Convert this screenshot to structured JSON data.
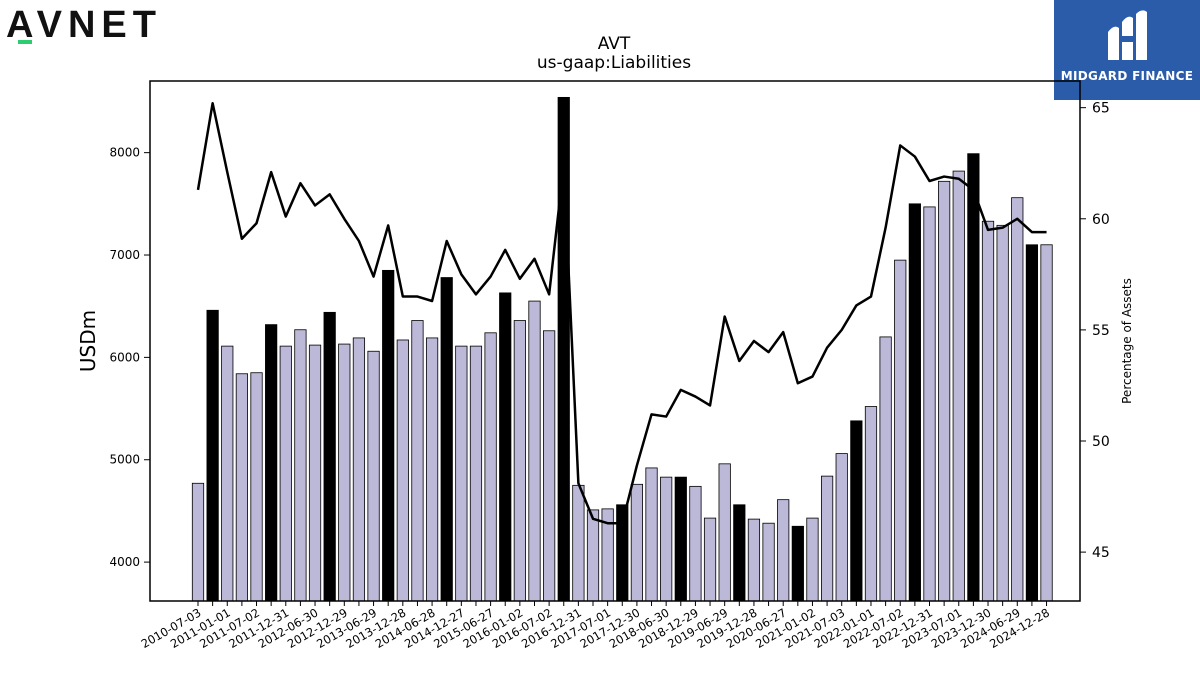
{
  "logos": {
    "left": "AVNET",
    "right": "MIDGARD FINANCE"
  },
  "chart_data": {
    "type": "bar",
    "title": "AVT",
    "subtitle": "us-gaap:Liabilities",
    "ylabel": "USDm",
    "y2label": "Percentage of Assets",
    "ylim": [
      3620,
      8700
    ],
    "y2lim": [
      42.8,
      66.2
    ],
    "yticks": [
      4000,
      5000,
      6000,
      7000,
      8000
    ],
    "y2ticks": [
      45,
      50,
      55,
      60,
      65
    ],
    "colors": {
      "bar": "#bcb8d8",
      "bar_highlight": "#000000",
      "line": "#000000"
    },
    "categories": [
      "2010-07-03",
      "2010-10-02",
      "2011-01-01",
      "2011-04-02",
      "2011-07-02",
      "2011-10-01",
      "2011-12-31",
      "2012-03-31",
      "2012-06-30",
      "2012-09-29",
      "2012-12-29",
      "2013-03-30",
      "2013-06-29",
      "2013-09-28",
      "2013-12-28",
      "2014-03-29",
      "2014-06-28",
      "2014-09-27",
      "2014-12-27",
      "2015-03-28",
      "2015-06-27",
      "2015-10-03",
      "2016-01-02",
      "2016-04-02",
      "2016-07-02",
      "2016-10-01",
      "2016-12-31",
      "2017-04-01",
      "2017-07-01",
      "2017-09-30",
      "2017-12-30",
      "2018-03-31",
      "2018-06-30",
      "2018-09-29",
      "2018-12-29",
      "2019-03-30",
      "2019-06-29",
      "2019-09-28",
      "2019-12-28",
      "2020-03-28",
      "2020-06-27",
      "2020-10-03",
      "2021-01-02",
      "2021-04-03",
      "2021-07-03",
      "2021-10-02",
      "2022-01-01",
      "2022-04-02",
      "2022-07-02",
      "2022-10-01",
      "2022-12-31",
      "2023-04-01",
      "2023-07-01",
      "2023-09-30",
      "2023-12-30",
      "2024-03-30",
      "2024-06-29",
      "2024-09-28",
      "2024-12-28"
    ],
    "tick_labels": [
      "2010-07-03",
      "2011-01-01",
      "2011-07-02",
      "2011-12-31",
      "2012-06-30",
      "2012-12-29",
      "2013-06-29",
      "2013-12-28",
      "2014-06-28",
      "2014-12-27",
      "2015-06-27",
      "2016-01-02",
      "2016-07-02",
      "2016-12-31",
      "2017-07-01",
      "2017-12-30",
      "2018-06-30",
      "2018-12-29",
      "2019-06-29",
      "2019-12-28",
      "2020-06-27",
      "2021-01-02",
      "2021-07-03",
      "2022-01-01",
      "2022-07-02",
      "2022-12-31",
      "2023-07-01",
      "2023-12-30",
      "2024-06-29",
      "2024-12-28"
    ],
    "series": [
      {
        "name": "USDm",
        "values": [
          4770,
          6460,
          6110,
          5840,
          5850,
          6320,
          6110,
          6270,
          6120,
          6440,
          6130,
          6190,
          6060,
          6850,
          6170,
          6360,
          6190,
          6780,
          6110,
          6110,
          6240,
          6630,
          6360,
          6550,
          6260,
          8540,
          4750,
          4510,
          4520,
          4560,
          4760,
          4920,
          4830,
          4830,
          4740,
          4430,
          4960,
          4560,
          4420,
          4380,
          4610,
          4350,
          4430,
          4840,
          5060,
          5380,
          5520,
          6200,
          6950,
          7500,
          7470,
          7720,
          7820,
          7990,
          7330,
          7290,
          7560,
          7100,
          7100
        ],
        "highlight": [
          false,
          true,
          false,
          false,
          false,
          true,
          false,
          false,
          false,
          true,
          false,
          false,
          false,
          true,
          false,
          false,
          false,
          true,
          false,
          false,
          false,
          true,
          false,
          false,
          false,
          true,
          false,
          false,
          false,
          true,
          false,
          false,
          false,
          true,
          false,
          false,
          false,
          true,
          false,
          false,
          false,
          true,
          false,
          false,
          false,
          true,
          false,
          false,
          false,
          true,
          false,
          false,
          false,
          true,
          false,
          false,
          false,
          true,
          false
        ]
      },
      {
        "name": "Percentage of Assets",
        "axis": "right",
        "values": [
          61.3,
          65.2,
          62.1,
          59.1,
          59.8,
          62.1,
          60.1,
          61.6,
          60.6,
          61.1,
          60.0,
          59.0,
          57.4,
          59.7,
          56.5,
          56.5,
          56.3,
          59.0,
          57.5,
          56.6,
          57.4,
          58.6,
          57.3,
          58.2,
          56.6,
          62.4,
          48.1,
          46.5,
          46.3,
          46.3,
          48.9,
          51.2,
          51.1,
          52.3,
          52.0,
          51.6,
          55.6,
          53.6,
          54.5,
          54.0,
          54.9,
          52.6,
          52.9,
          54.2,
          55.0,
          56.1,
          56.5,
          59.6,
          63.3,
          62.8,
          61.7,
          61.9,
          61.8,
          61.3,
          59.5,
          59.6,
          60.0,
          59.4,
          59.4
        ]
      }
    ],
    "grid": false,
    "legend": "none"
  }
}
